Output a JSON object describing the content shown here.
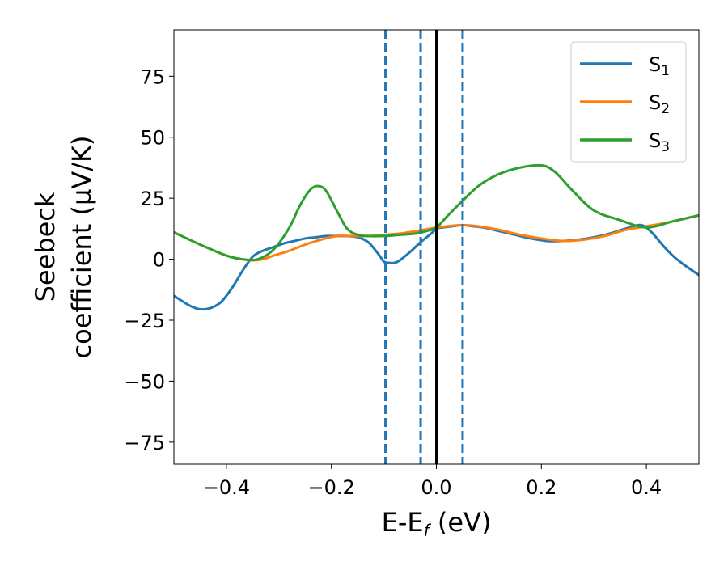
{
  "chart_data": {
    "type": "line",
    "xlabel_main": "E-E",
    "xlabel_sub": "f",
    "xlabel_tail": " (eV)",
    "ylabel_line1": "Seebeck",
    "ylabel_line2": "coefficient  (μV/K)",
    "xlim": [
      -0.5,
      0.5
    ],
    "ylim": [
      -84,
      94
    ],
    "xticks": [
      -0.4,
      -0.2,
      0.0,
      0.2,
      0.4
    ],
    "xtick_labels": [
      "−0.4",
      "−0.2",
      "0.0",
      "0.2",
      "0.4"
    ],
    "yticks": [
      -75,
      -50,
      -25,
      0,
      25,
      50,
      75
    ],
    "ytick_labels": [
      "−75",
      "−50",
      "−25",
      "0",
      "25",
      "50",
      "75"
    ],
    "grid": false,
    "legend_placement": "top-right",
    "vlines": [
      {
        "x": -0.097,
        "style": "dashed",
        "color": "#1f77b4"
      },
      {
        "x": -0.03,
        "style": "dashed",
        "color": "#1f77b4"
      },
      {
        "x": 0.05,
        "style": "dashed",
        "color": "#1f77b4"
      },
      {
        "x": 0.0,
        "style": "solid",
        "color": "#000000"
      }
    ],
    "series": [
      {
        "name_main": "S",
        "name_sub": "1",
        "color": "#1f77b4",
        "x": [
          -0.5,
          -0.47,
          -0.45,
          -0.43,
          -0.41,
          -0.39,
          -0.37,
          -0.35,
          -0.33,
          -0.31,
          -0.29,
          -0.27,
          -0.25,
          -0.23,
          -0.21,
          -0.19,
          -0.17,
          -0.15,
          -0.13,
          -0.11,
          -0.1,
          -0.09,
          -0.08,
          -0.07,
          -0.05,
          -0.03,
          -0.01,
          0.0,
          0.01,
          0.03,
          0.05,
          0.07,
          0.09,
          0.12,
          0.15,
          0.18,
          0.21,
          0.24,
          0.27,
          0.3,
          0.33,
          0.36,
          0.39,
          0.41,
          0.43,
          0.45,
          0.47,
          0.5
        ],
        "y": [
          -15,
          -19,
          -20.5,
          -20,
          -17.5,
          -12,
          -5,
          1,
          3.5,
          5,
          6.5,
          7.5,
          8.5,
          9,
          9.5,
          9.5,
          9.5,
          9,
          7,
          2,
          -1,
          -1.5,
          -1.5,
          -0.5,
          3,
          7,
          10.5,
          12.5,
          13,
          13.5,
          14,
          13.5,
          13,
          11.5,
          10,
          8.5,
          7.5,
          7.5,
          8,
          9,
          10.5,
          12.5,
          14,
          11,
          6,
          1.5,
          -2,
          -6.5
        ]
      },
      {
        "name_main": "S",
        "name_sub": "2",
        "color": "#ff7f0e",
        "x": [
          -0.5,
          -0.45,
          -0.4,
          -0.37,
          -0.35,
          -0.33,
          -0.31,
          -0.28,
          -0.25,
          -0.22,
          -0.19,
          -0.16,
          -0.13,
          -0.1,
          -0.07,
          -0.04,
          -0.02,
          0.0,
          0.02,
          0.05,
          0.08,
          0.12,
          0.16,
          0.2,
          0.24,
          0.28,
          0.32,
          0.36,
          0.4,
          0.44,
          0.47,
          0.5
        ],
        "y": [
          11,
          6,
          1.5,
          0,
          -0.5,
          0,
          1.5,
          3.5,
          6,
          8,
          9.5,
          9.5,
          9.5,
          10,
          10.5,
          11.5,
          12.2,
          13,
          13.5,
          14,
          13.5,
          12,
          10,
          8.5,
          7.5,
          8,
          9.5,
          12,
          13.5,
          15,
          16.5,
          18
        ]
      },
      {
        "name_main": "S",
        "name_sub": "3",
        "color": "#2ca02c",
        "x": [
          -0.5,
          -0.45,
          -0.4,
          -0.37,
          -0.34,
          -0.31,
          -0.28,
          -0.26,
          -0.24,
          -0.225,
          -0.21,
          -0.19,
          -0.17,
          -0.15,
          -0.13,
          -0.1,
          -0.07,
          -0.04,
          -0.02,
          0.0,
          0.02,
          0.05,
          0.08,
          0.11,
          0.14,
          0.17,
          0.19,
          0.21,
          0.23,
          0.26,
          0.3,
          0.35,
          0.4,
          0.45,
          0.5
        ],
        "y": [
          11,
          6,
          1.5,
          0,
          0,
          4,
          13,
          22,
          28.5,
          30,
          28,
          20,
          12.5,
          10,
          9.5,
          9.5,
          10,
          10.5,
          11.5,
          13,
          17.5,
          24,
          30,
          34,
          36.5,
          38,
          38.5,
          38,
          35,
          28,
          20,
          16,
          13,
          15.5,
          18
        ]
      }
    ]
  }
}
